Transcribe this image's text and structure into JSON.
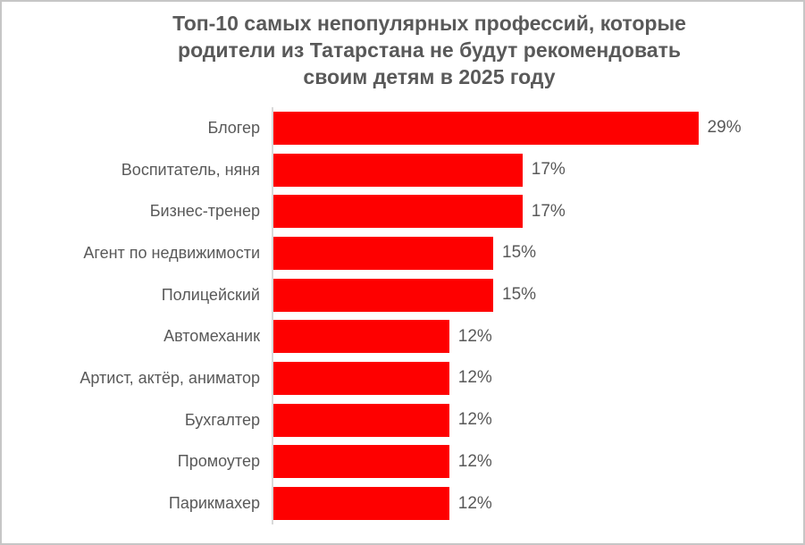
{
  "title": {
    "lines": [
      "Топ-10 самых непопулярных профессий, которые",
      "родители из Татарстана не будут рекомендовать",
      "своим детям в 2025 году"
    ]
  },
  "chart_data": {
    "type": "bar",
    "orientation": "horizontal",
    "title": "Топ-10 самых непопулярных профессий, которые родители из Татарстана не будут рекомендовать своим детям в 2025 году",
    "categories": [
      "Блогер",
      "Воспитатель, няня",
      "Бизнес-тренер",
      "Агент по недвижимости",
      "Полицейский",
      "Автомеханик",
      "Артист, актёр, аниматор",
      "Бухгалтер",
      "Промоутер",
      "Парикмахер"
    ],
    "values": [
      29,
      17,
      17,
      15,
      15,
      12,
      12,
      12,
      12,
      12
    ],
    "value_labels": [
      "29%",
      "17%",
      "17%",
      "15%",
      "15%",
      "12%",
      "12%",
      "12%",
      "12%",
      "12%"
    ],
    "unit": "%",
    "xlabel": "",
    "ylabel": "",
    "xlim": [
      0,
      35
    ],
    "grid": false,
    "legend": "none",
    "colors": {
      "bar": "#fe0000",
      "text": "#595959",
      "title_text": "#595959",
      "axis_line": "#d9d9d9",
      "border": "#c6c6c6",
      "background": "#ffffff"
    }
  }
}
